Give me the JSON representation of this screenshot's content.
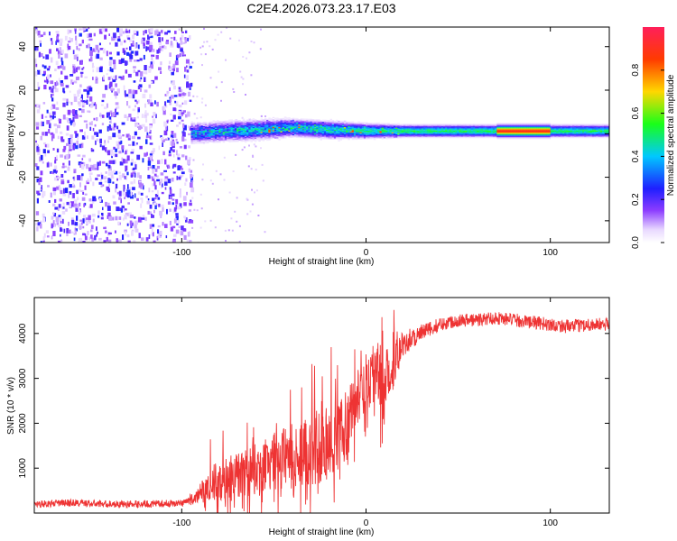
{
  "title": "C2E4.2026.073.23.17.E03",
  "chart_data": [
    {
      "type": "heatmap",
      "name": "spectrogram",
      "xlabel": "Height of straight line (km)",
      "ylabel": "Frequency (Hz)",
      "xlim": [
        -180,
        132
      ],
      "ylim": [
        -50,
        49
      ],
      "xticks": [
        -100,
        0,
        100
      ],
      "xtick_labels": [
        "-100",
        "0",
        "100"
      ],
      "yticks": [
        -40,
        -20,
        0,
        20,
        40
      ],
      "ytick_labels": [
        "-40",
        "-20",
        "0",
        "20",
        "40"
      ],
      "noise_region_x": [
        -180,
        -95
      ],
      "signal_band": [
        {
          "x": -95,
          "center": 0.0,
          "halfwidth": 4
        },
        {
          "x": -60,
          "center": 1.5,
          "halfwidth": 4
        },
        {
          "x": -40,
          "center": 2.5,
          "halfwidth": 3.5
        },
        {
          "x": -20,
          "center": 1.5,
          "halfwidth": 3.5
        },
        {
          "x": 0,
          "center": 1.0,
          "halfwidth": 3
        },
        {
          "x": 20,
          "center": 1.0,
          "halfwidth": 2.5
        },
        {
          "x": 80,
          "center": 1.0,
          "halfwidth": 2.5
        },
        {
          "x": 132,
          "center": 1.0,
          "halfwidth": 2.5
        }
      ],
      "peak_regions": [
        {
          "x_start": 70,
          "x_end": 100,
          "frequency": 1.0,
          "amplitude": 0.9
        }
      ],
      "colorbar": {
        "label": "Normalized spectral amplitude",
        "range": [
          0,
          1
        ],
        "ticks": [
          0.0,
          0.2,
          0.4,
          0.6,
          0.8
        ],
        "tick_labels": [
          "0.0",
          "0.2",
          "0.4",
          "0.6",
          "0.8"
        ],
        "colormap": [
          "#ffffff",
          "#8b3cff",
          "#1f1fff",
          "#00c8ff",
          "#19ff19",
          "#ffd700",
          "#ff3b00",
          "#ff1f5a"
        ]
      }
    },
    {
      "type": "line",
      "name": "snr",
      "xlabel": "Height of straight line (km)",
      "ylabel": "SNR (10 * v/v)",
      "xlim": [
        -180,
        132
      ],
      "ylim": [
        0,
        4800
      ],
      "xticks": [
        -100,
        0,
        100
      ],
      "xtick_labels": [
        "-100",
        "0",
        "100"
      ],
      "yticks": [
        1000,
        2000,
        3000,
        4000
      ],
      "ytick_labels": [
        "1000",
        "2000",
        "3000",
        "4000"
      ],
      "line_color": "#ee3333",
      "series": [
        {
          "name": "SNR",
          "x": [
            -180,
            -160,
            -140,
            -120,
            -100,
            -92,
            -85,
            -75,
            -65,
            -55,
            -45,
            -35,
            -25,
            -15,
            -8,
            0,
            5,
            10,
            15,
            20,
            30,
            40,
            50,
            60,
            70,
            80,
            90,
            100,
            110,
            120,
            132
          ],
          "y": [
            200,
            230,
            200,
            200,
            220,
            350,
            650,
            750,
            900,
            1100,
            1200,
            1350,
            1500,
            1500,
            2400,
            2700,
            3200,
            2800,
            3300,
            3800,
            4000,
            4200,
            4300,
            4300,
            4350,
            4300,
            4250,
            4200,
            4150,
            4200,
            4200
          ],
          "spread": [
            80,
            80,
            80,
            80,
            80,
            150,
            400,
            500,
            550,
            600,
            700,
            750,
            850,
            900,
            700,
            600,
            700,
            900,
            500,
            300,
            200,
            150,
            150,
            150,
            150,
            150,
            150,
            150,
            150,
            150,
            150
          ]
        }
      ]
    }
  ]
}
